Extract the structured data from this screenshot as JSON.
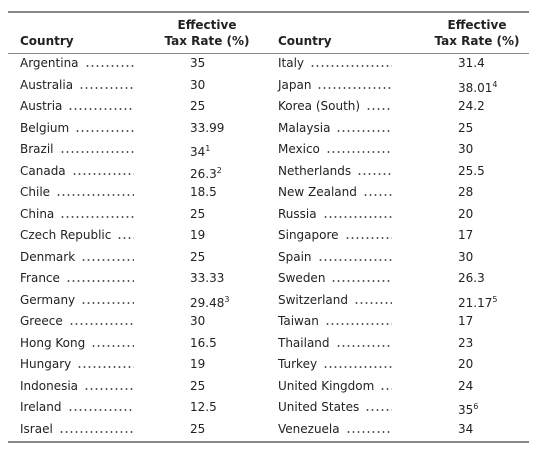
{
  "table": {
    "header": {
      "country": "Country",
      "rate": [
        "Effective",
        "Tax Rate (%)"
      ]
    },
    "left": [
      {
        "country": "Argentina",
        "rate": "35"
      },
      {
        "country": "Australia",
        "rate": "30"
      },
      {
        "country": "Austria",
        "rate": "25"
      },
      {
        "country": "Belgium",
        "rate": "33.99"
      },
      {
        "country": "Brazil",
        "rate": "34",
        "note": "1"
      },
      {
        "country": "Canada",
        "rate": "26.3",
        "note": "2"
      },
      {
        "country": "Chile",
        "rate": "18.5"
      },
      {
        "country": "China",
        "rate": "25"
      },
      {
        "country": "Czech Republic",
        "rate": "19"
      },
      {
        "country": "Denmark",
        "rate": "25"
      },
      {
        "country": "France",
        "rate": "33.33"
      },
      {
        "country": "Germany",
        "rate": "29.48",
        "note": "3"
      },
      {
        "country": "Greece",
        "rate": "30"
      },
      {
        "country": "Hong Kong",
        "rate": "16.5"
      },
      {
        "country": "Hungary",
        "rate": "19"
      },
      {
        "country": "Indonesia",
        "rate": "25"
      },
      {
        "country": "Ireland",
        "rate": "12.5"
      },
      {
        "country": "Israel",
        "rate": "25"
      }
    ],
    "right": [
      {
        "country": "Italy",
        "rate": "31.4"
      },
      {
        "country": "Japan",
        "rate": "38.01",
        "note": "4"
      },
      {
        "country": "Korea (South)",
        "rate": "24.2"
      },
      {
        "country": "Malaysia",
        "rate": "25"
      },
      {
        "country": "Mexico",
        "rate": "30"
      },
      {
        "country": "Netherlands",
        "rate": "25.5"
      },
      {
        "country": "New Zealand",
        "rate": "28"
      },
      {
        "country": "Russia",
        "rate": "20"
      },
      {
        "country": "Singapore",
        "rate": "17"
      },
      {
        "country": "Spain",
        "rate": "30"
      },
      {
        "country": "Sweden",
        "rate": "26.3"
      },
      {
        "country": "Switzerland",
        "rate": "21.17",
        "note": "5"
      },
      {
        "country": "Taiwan",
        "rate": "17"
      },
      {
        "country": "Thailand",
        "rate": "23"
      },
      {
        "country": "Turkey",
        "rate": "20"
      },
      {
        "country": "United Kingdom",
        "rate": "24"
      },
      {
        "country": "United States",
        "rate": "35",
        "note": "6"
      },
      {
        "country": "Venezuela",
        "rate": "34"
      }
    ]
  }
}
